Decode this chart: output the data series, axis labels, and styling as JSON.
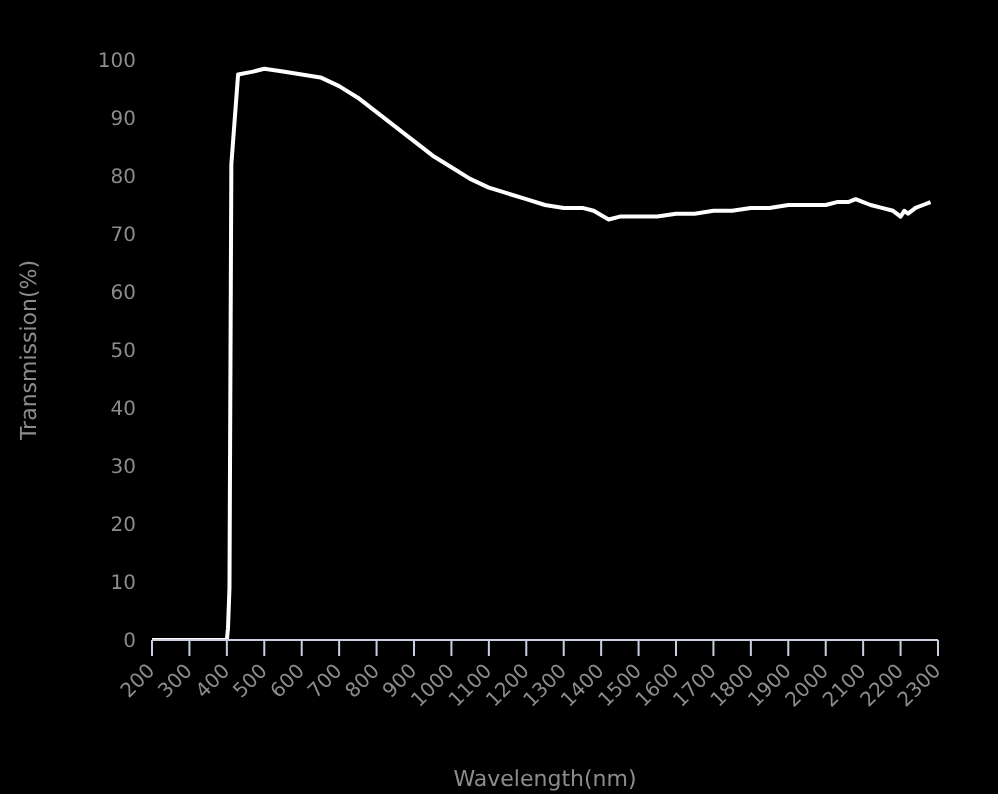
{
  "chart_data": {
    "type": "line",
    "xlabel": "Wavelength(nm)",
    "ylabel": "Transmission(%)",
    "x": [
      200,
      300,
      400,
      403,
      407,
      412,
      430,
      470,
      500,
      550,
      600,
      650,
      700,
      750,
      800,
      850,
      900,
      950,
      1000,
      1050,
      1100,
      1150,
      1200,
      1250,
      1300,
      1350,
      1380,
      1420,
      1450,
      1500,
      1550,
      1600,
      1650,
      1700,
      1750,
      1800,
      1850,
      1900,
      1950,
      2000,
      2030,
      2060,
      2080,
      2100,
      2120,
      2150,
      2180,
      2200,
      2210,
      2220,
      2240,
      2260,
      2280
    ],
    "series": [
      {
        "color": "#ffffff",
        "values": [
          0,
          0,
          0,
          2,
          9,
          82,
          97.5,
          98,
          98.5,
          98,
          97.5,
          97,
          95.5,
          93.5,
          91,
          88.5,
          86,
          83.5,
          81.5,
          79.5,
          78,
          77,
          76,
          75,
          74.5,
          74.5,
          74,
          72.5,
          73,
          73,
          73,
          73.5,
          73.5,
          74,
          74,
          74.5,
          74.5,
          75,
          75,
          75,
          75.5,
          75.5,
          76,
          75.5,
          75,
          74.5,
          74,
          73,
          74,
          73.5,
          74.5,
          75,
          75.5
        ]
      }
    ],
    "xlim": [
      200,
      2300
    ],
    "xticks": [
      200,
      300,
      400,
      500,
      600,
      700,
      800,
      900,
      1000,
      1100,
      1200,
      1300,
      1400,
      1500,
      1600,
      1700,
      1800,
      1900,
      2000,
      2100,
      2200,
      2300
    ],
    "ylim": [
      0,
      100
    ],
    "yticks": [
      0,
      10,
      20,
      30,
      40,
      50,
      60,
      70,
      80,
      90,
      100
    ],
    "grid": false,
    "legend": false,
    "marker": "none",
    "line_style": "solid"
  }
}
